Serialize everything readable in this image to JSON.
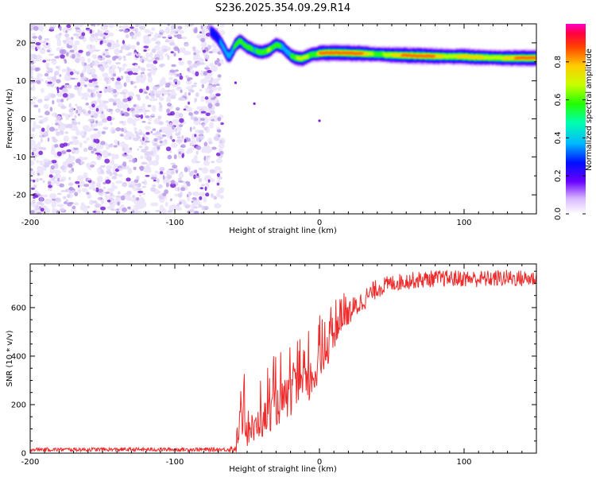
{
  "title": "S236.2025.354.09.29.R14",
  "colors": {
    "snr_line": "#ee2c2c",
    "speckle_light": "#ddd0f6",
    "speckle_mid": "#b79ae8",
    "speckle_dark": "#7a22d8",
    "frame": "#000000"
  },
  "chart_data": [
    {
      "type": "heatmap",
      "title": "S236.2025.354.09.29.R14",
      "xlabel": "Height of straight line (km)",
      "ylabel": "Frequency (Hz)",
      "xlim": [
        -200,
        150
      ],
      "ylim": [
        -25,
        25
      ],
      "xticks": [
        -200,
        -100,
        0,
        100
      ],
      "xtick_labels": [
        "-200",
        "-100",
        "0",
        "100"
      ],
      "yticks": [
        -20,
        -10,
        0,
        10,
        20
      ],
      "ytick_labels": [
        "-20",
        "-10",
        "0",
        "10",
        "20"
      ],
      "noise_region_x": [
        -200,
        -67
      ],
      "signal_track": {
        "x": [
          -75,
          -72,
          -70,
          -68,
          -66,
          -64,
          -62,
          -58,
          -55,
          -50,
          -45,
          -40,
          -35,
          -30,
          -26,
          -22,
          -19,
          -16,
          -12,
          -8,
          -5,
          -2,
          0,
          10,
          20,
          30,
          40,
          50,
          60,
          70,
          80,
          90,
          100,
          110,
          120,
          130,
          140,
          150
        ],
        "freq": [
          23,
          22,
          21,
          20,
          18.5,
          17,
          16.5,
          19.5,
          20.5,
          19,
          18,
          17.5,
          18,
          19.5,
          19,
          17.5,
          16.5,
          16,
          15.8,
          16.5,
          17,
          17,
          17.3,
          17.4,
          17.3,
          17.2,
          17,
          16.8,
          16.7,
          16.6,
          16.5,
          16.4,
          16.4,
          16.2,
          16.1,
          16,
          16,
          16
        ],
        "amplitude": [
          0.3,
          0.35,
          0.4,
          0.45,
          0.5,
          0.55,
          0.5,
          0.6,
          0.65,
          0.6,
          0.55,
          0.6,
          0.7,
          0.6,
          0.55,
          0.5,
          0.6,
          0.7,
          0.75,
          0.7,
          0.6,
          0.65,
          0.9,
          0.95,
          0.95,
          0.9,
          0.6,
          0.8,
          0.95,
          0.95,
          0.9,
          0.7,
          0.9,
          0.85,
          0.7,
          0.85,
          0.95,
          0.95
        ]
      }
    },
    {
      "type": "colorbar",
      "label": "Normalized spectral amplitude",
      "range": [
        0,
        1
      ],
      "ticks": [
        0.0,
        0.2,
        0.4,
        0.6,
        0.8
      ],
      "tick_labels": [
        "0.0",
        "0.2",
        "0.4",
        "0.6",
        "0.8"
      ]
    },
    {
      "type": "line",
      "xlabel": "Height of straight line (km)",
      "ylabel": "SNR (10 * v/v)",
      "xlim": [
        -200,
        150
      ],
      "ylim": [
        0,
        780
      ],
      "xticks": [
        -200,
        -100,
        0,
        100
      ],
      "xtick_labels": [
        "-200",
        "-100",
        "0",
        "100"
      ],
      "yticks": [
        0,
        200,
        400,
        600
      ],
      "ytick_labels": [
        "0",
        "200",
        "400",
        "600"
      ],
      "series": [
        {
          "name": "SNR",
          "x": [
            -200,
            -180,
            -160,
            -140,
            -120,
            -100,
            -80,
            -65,
            -58,
            -55,
            -52,
            -50,
            -48,
            -45,
            -42,
            -40,
            -35,
            -30,
            -25,
            -20,
            -15,
            -10,
            -5,
            0,
            5,
            10,
            15,
            20,
            25,
            30,
            40,
            50,
            60,
            70,
            80,
            90,
            100,
            110,
            120,
            130,
            140,
            150
          ],
          "mean": [
            15,
            15,
            15,
            15,
            15,
            15,
            15,
            15,
            20,
            120,
            200,
            80,
            120,
            100,
            150,
            140,
            180,
            210,
            230,
            260,
            290,
            280,
            330,
            380,
            440,
            500,
            540,
            580,
            600,
            630,
            680,
            700,
            710,
            715,
            720,
            720,
            720,
            718,
            720,
            722,
            720,
            720
          ],
          "spread": [
            8,
            8,
            8,
            8,
            8,
            8,
            8,
            8,
            20,
            120,
            130,
            80,
            100,
            100,
            110,
            110,
            120,
            130,
            130,
            140,
            140,
            140,
            140,
            130,
            110,
            90,
            70,
            60,
            50,
            45,
            40,
            35,
            35,
            35,
            35,
            35,
            35,
            35,
            35,
            35,
            35,
            35
          ]
        }
      ]
    }
  ]
}
